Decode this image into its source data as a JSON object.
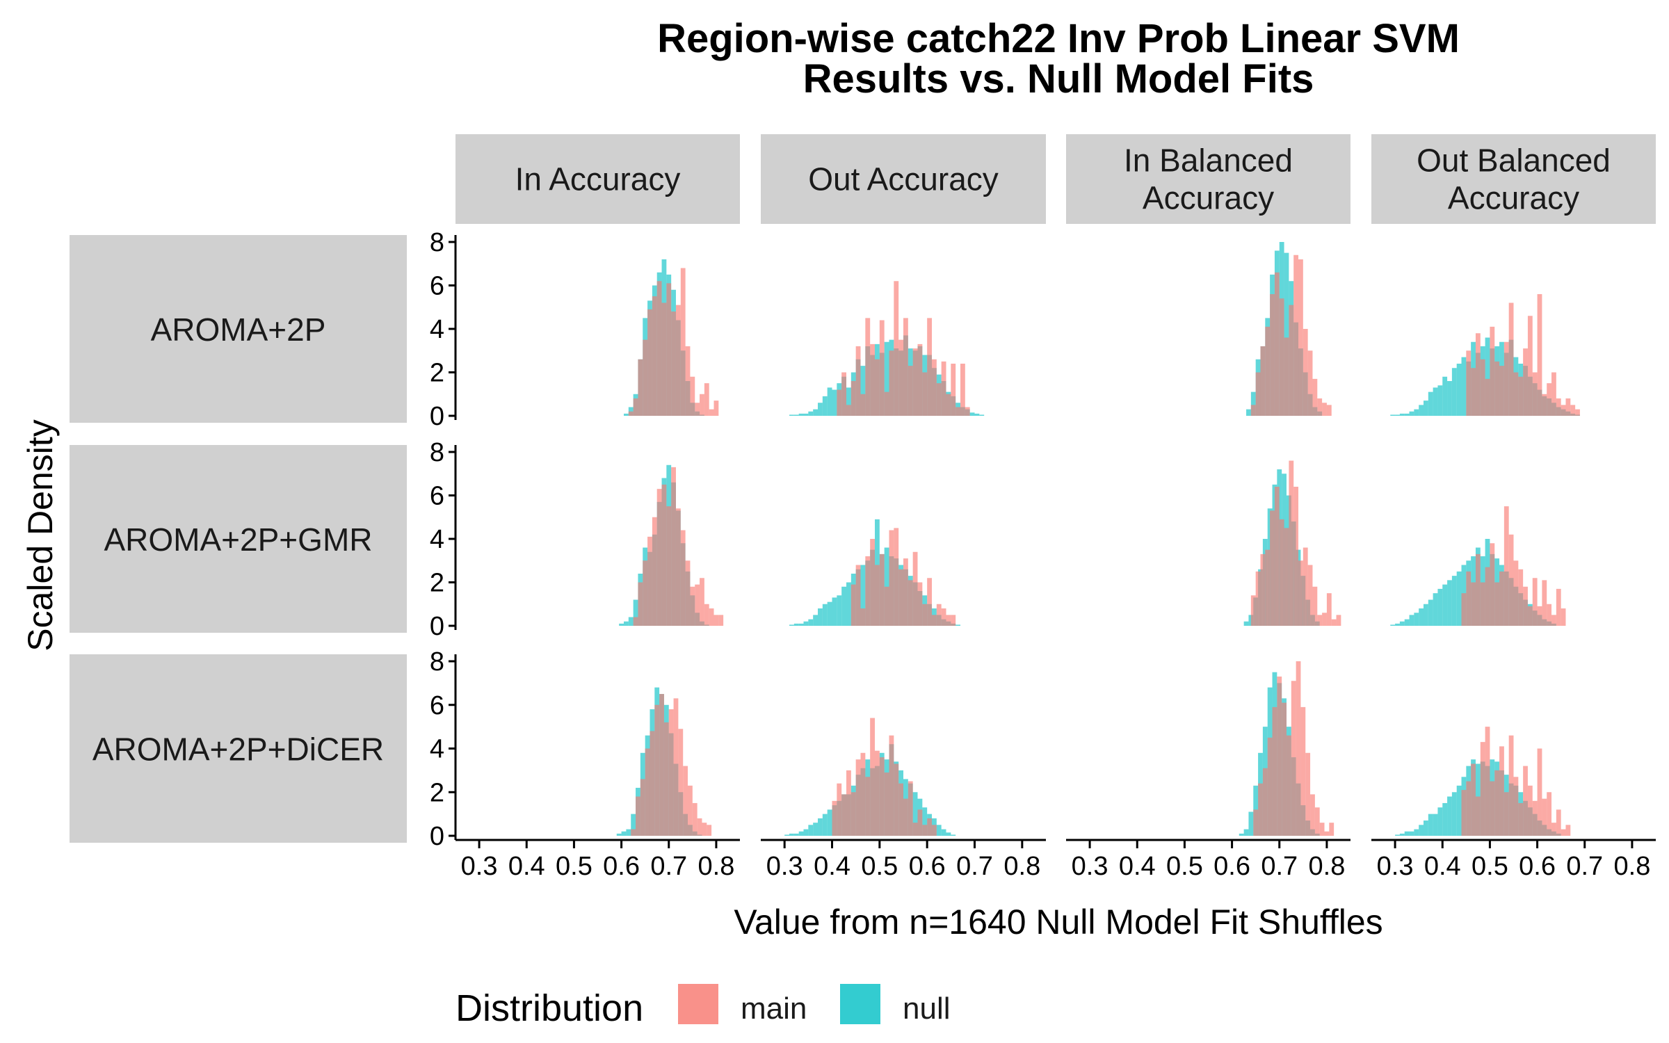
{
  "chart_data": {
    "type": "histogram",
    "title": [
      "Region-wise catch22 Inv Prob Linear SVM",
      "Results vs. Null Model Fits"
    ],
    "xlabel": "Value from n=1640 Null Model Fit Shuffles",
    "ylabel": "Scaled Density",
    "xlim": [
      0.25,
      0.85
    ],
    "ylim": [
      0,
      8
    ],
    "x_ticks": [
      "0.3",
      "0.4",
      "0.5",
      "0.6",
      "0.7",
      "0.8"
    ],
    "y_ticks": [
      "0",
      "2",
      "4",
      "6",
      "8"
    ],
    "grid": false,
    "legend": {
      "title": "Distribution",
      "position": "bottom",
      "items": [
        {
          "label": "main",
          "color": "#F8766D"
        },
        {
          "label": "null",
          "color": "#00BFC4"
        }
      ]
    },
    "col_facets": [
      [
        "In Accuracy"
      ],
      [
        "Out Accuracy"
      ],
      [
        "In Balanced",
        "Accuracy"
      ],
      [
        "Out Balanced",
        "Accuracy"
      ]
    ],
    "row_facets": [
      "AROMA+2P",
      "AROMA+2P+GMR",
      "AROMA+2P+DiCER"
    ],
    "bin_width": 0.01,
    "panels": [
      {
        "row": 0,
        "col": 0,
        "main": {
          "x0": 0.615,
          "values": [
            0.2,
            0.8,
            2.6,
            3.5,
            4.9,
            5.5,
            6.2,
            5.2,
            6.1,
            4.8,
            5.1,
            6.8,
            3.2,
            1.8,
            0.6,
            1.0,
            1.5,
            0.3,
            0.7
          ]
        },
        "null": {
          "x0": 0.605,
          "values": [
            0.1,
            0.4,
            1.0,
            2.6,
            4.5,
            5.3,
            6.0,
            6.6,
            7.2,
            6.5,
            5.8,
            4.4,
            3.0,
            1.6,
            0.6,
            0.2,
            0.05
          ]
        }
      },
      {
        "row": 0,
        "col": 1,
        "main": {
          "x0": 0.41,
          "values": [
            1.2,
            2.0,
            0.5,
            1.6,
            3.2,
            1.0,
            4.5,
            3.3,
            2.6,
            4.4,
            1.1,
            3.0,
            6.2,
            3.5,
            4.5,
            2.3,
            3.1,
            3.3,
            2.0,
            4.5,
            2.6,
            1.5,
            2.5,
            1.0,
            2.4,
            0.4,
            2.4,
            0.4
          ]
        },
        "null": {
          "x0": 0.31,
          "values": [
            0.05,
            0.05,
            0.1,
            0.1,
            0.2,
            0.3,
            0.6,
            0.9,
            1.3,
            1.2,
            1.5,
            1.8,
            1.3,
            2.0,
            2.6,
            2.3,
            3.2,
            2.8,
            3.3,
            2.9,
            3.4,
            3.5,
            3.1,
            3.0,
            3.7,
            3.1,
            3.0,
            3.2,
            2.8,
            2.8,
            2.2,
            1.9,
            1.6,
            1.1,
            0.9,
            0.6,
            0.4,
            0.3,
            0.15,
            0.1,
            0.05
          ]
        }
      },
      {
        "row": 0,
        "col": 2,
        "main": {
          "x0": 0.64,
          "values": [
            0.5,
            2.0,
            3.2,
            4.1,
            5.6,
            6.6,
            5.4,
            3.6,
            5.1,
            7.4,
            7.2,
            4.0,
            3.0,
            1.7,
            0.8,
            0.6,
            0.5
          ]
        },
        "null": {
          "x0": 0.63,
          "values": [
            0.3,
            1.1,
            2.6,
            3.2,
            4.5,
            6.5,
            7.6,
            8.0,
            7.5,
            6.2,
            4.3,
            3.1,
            2.0,
            1.0,
            0.4,
            0.2
          ]
        }
      },
      {
        "row": 0,
        "col": 3,
        "main": {
          "x0": 0.45,
          "values": [
            3.0,
            2.2,
            3.8,
            2.6,
            1.7,
            4.1,
            2.5,
            2.3,
            3.4,
            5.2,
            2.0,
            1.8,
            3.1,
            4.6,
            2.0,
            5.6,
            1.0,
            1.5,
            2.0,
            0.8,
            0.5,
            0.8,
            0.5,
            0.3
          ]
        },
        "null": {
          "x0": 0.29,
          "values": [
            0.05,
            0.05,
            0.1,
            0.1,
            0.2,
            0.3,
            0.5,
            0.7,
            1.1,
            1.3,
            1.4,
            1.8,
            1.6,
            2.2,
            2.4,
            2.7,
            2.5,
            3.4,
            2.9,
            3.2,
            3.6,
            3.1,
            3.2,
            3.4,
            2.9,
            3.5,
            2.7,
            2.4,
            2.3,
            1.8,
            1.5,
            1.2,
            0.9,
            0.8,
            0.6,
            0.4,
            0.3,
            0.2,
            0.1,
            0.05
          ]
        }
      },
      {
        "row": 1,
        "col": 0,
        "main": {
          "x0": 0.625,
          "values": [
            0.4,
            2.0,
            3.0,
            4.1,
            5.0,
            6.3,
            6.5,
            5.5,
            7.3,
            5.4,
            4.4,
            3.0,
            1.8,
            1.9,
            2.2,
            1.0,
            0.8,
            0.5,
            0.5
          ]
        },
        "null": {
          "x0": 0.595,
          "values": [
            0.1,
            0.2,
            0.4,
            1.2,
            2.4,
            3.6,
            3.4,
            4.2,
            5.7,
            6.8,
            7.4,
            6.6,
            5.3,
            3.8,
            2.5,
            1.4,
            0.6,
            0.2,
            0.05
          ]
        }
      },
      {
        "row": 1,
        "col": 1,
        "main": {
          "x0": 0.44,
          "values": [
            1.9,
            2.8,
            0.8,
            3.2,
            4.0,
            2.8,
            3.3,
            1.8,
            4.4,
            4.5,
            2.6,
            3.1,
            2.1,
            3.4,
            2.0,
            1.0,
            2.2,
            0.5,
            1.0,
            0.8,
            0.5,
            0.5
          ]
        },
        "null": {
          "x0": 0.31,
          "values": [
            0.05,
            0.1,
            0.1,
            0.2,
            0.3,
            0.5,
            0.8,
            1.0,
            1.1,
            1.3,
            1.4,
            1.8,
            2.0,
            2.4,
            2.6,
            2.8,
            3.0,
            3.5,
            4.9,
            3.3,
            3.6,
            3.2,
            3.1,
            2.8,
            2.6,
            2.3,
            2.0,
            1.6,
            1.4,
            1.0,
            0.8,
            0.5,
            0.3,
            0.2,
            0.1,
            0.05
          ]
        }
      },
      {
        "row": 1,
        "col": 2,
        "main": {
          "x0": 0.64,
          "values": [
            1.4,
            2.5,
            3.3,
            3.5,
            5.3,
            6.4,
            4.9,
            4.5,
            7.6,
            6.4,
            3.0,
            3.6,
            2.8,
            1.8,
            0.5,
            0.6,
            1.5,
            0.3,
            0.5
          ]
        },
        "null": {
          "x0": 0.625,
          "values": [
            0.2,
            0.5,
            1.3,
            2.6,
            4.0,
            5.4,
            6.5,
            7.2,
            7.0,
            6.0,
            4.8,
            3.5,
            2.3,
            1.2,
            0.5,
            0.2
          ]
        }
      },
      {
        "row": 1,
        "col": 3,
        "main": {
          "x0": 0.44,
          "values": [
            1.5,
            2.5,
            2.0,
            3.3,
            2.0,
            2.7,
            3.8,
            2.0,
            2.5,
            5.5,
            4.2,
            3.0,
            2.6,
            1.8,
            0.9,
            2.2,
            0.9,
            2.1,
            1.0,
            0.5,
            1.7,
            0.8
          ]
        },
        "null": {
          "x0": 0.29,
          "values": [
            0.05,
            0.1,
            0.2,
            0.3,
            0.5,
            0.6,
            0.8,
            1.0,
            1.2,
            1.5,
            1.7,
            1.9,
            2.1,
            2.3,
            2.5,
            2.8,
            3.0,
            3.2,
            3.6,
            3.2,
            4.0,
            3.3,
            3.1,
            2.8,
            2.5,
            2.2,
            1.8,
            1.5,
            1.2,
            1.0,
            0.7,
            0.5,
            0.3,
            0.2,
            0.1
          ]
        }
      },
      {
        "row": 2,
        "col": 0,
        "main": {
          "x0": 0.62,
          "values": [
            0.3,
            1.8,
            2.6,
            4.0,
            4.8,
            6.0,
            6.5,
            5.2,
            5.8,
            6.3,
            4.9,
            3.2,
            2.3,
            1.5,
            0.8,
            0.6,
            0.5
          ]
        },
        "null": {
          "x0": 0.59,
          "values": [
            0.1,
            0.2,
            0.3,
            1.0,
            2.2,
            3.8,
            4.6,
            5.8,
            6.8,
            6.5,
            6.0,
            4.7,
            3.3,
            2.0,
            1.0,
            0.5,
            0.2,
            0.05
          ]
        }
      },
      {
        "row": 2,
        "col": 1,
        "main": {
          "x0": 0.4,
          "values": [
            1.6,
            2.4,
            1.9,
            3.0,
            2.0,
            3.5,
            3.8,
            2.7,
            5.4,
            3.9,
            3.6,
            2.9,
            4.6,
            3.3,
            2.4,
            1.7,
            2.5,
            0.6,
            1.2,
            0.5,
            0.8,
            0.5
          ]
        },
        "null": {
          "x0": 0.3,
          "values": [
            0.05,
            0.1,
            0.1,
            0.2,
            0.3,
            0.5,
            0.6,
            0.8,
            1.0,
            1.2,
            1.4,
            1.6,
            1.9,
            1.9,
            2.3,
            2.8,
            3.1,
            3.5,
            3.1,
            3.2,
            3.8,
            3.5,
            4.2,
            3.4,
            3.0,
            2.6,
            2.4,
            2.0,
            1.7,
            1.3,
            1.0,
            0.8,
            0.5,
            0.3,
            0.15,
            0.05
          ]
        }
      },
      {
        "row": 2,
        "col": 2,
        "main": {
          "x0": 0.645,
          "values": [
            1.2,
            2.4,
            3.1,
            4.5,
            5.9,
            7.3,
            6.1,
            4.6,
            7.1,
            8.0,
            5.9,
            3.8,
            1.9,
            1.3,
            0.6,
            0.2,
            0.6
          ]
        },
        "null": {
          "x0": 0.615,
          "values": [
            0.1,
            0.3,
            1.1,
            2.3,
            3.8,
            5.0,
            6.8,
            7.5,
            7.0,
            6.3,
            5.0,
            3.6,
            2.4,
            1.4,
            0.7,
            0.3,
            0.1
          ]
        }
      },
      {
        "row": 2,
        "col": 3,
        "main": {
          "x0": 0.44,
          "values": [
            2.1,
            2.5,
            3.3,
            1.8,
            4.3,
            5.0,
            2.5,
            3.0,
            4.1,
            2.0,
            4.6,
            2.7,
            1.5,
            3.2,
            2.3,
            1.6,
            4.0,
            1.7,
            2.0,
            0.6,
            1.2,
            0.3,
            0.5
          ]
        },
        "null": {
          "x0": 0.3,
          "values": [
            0.05,
            0.1,
            0.2,
            0.2,
            0.3,
            0.5,
            0.7,
            1.0,
            1.0,
            1.3,
            1.5,
            1.8,
            2.0,
            2.3,
            2.7,
            3.2,
            3.5,
            3.3,
            3.4,
            3.2,
            3.5,
            3.4,
            3.0,
            2.8,
            2.4,
            2.3,
            2.0,
            1.6,
            1.3,
            1.0,
            0.7,
            0.5,
            0.3,
            0.2,
            0.1
          ]
        }
      }
    ]
  }
}
